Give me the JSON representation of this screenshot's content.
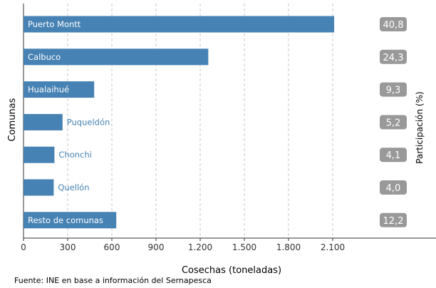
{
  "chart_data": {
    "type": "bar",
    "orientation": "horizontal",
    "categories": [
      "Puerto Montt",
      "Calbuco",
      "Hualaihué",
      "Puqueldón",
      "Chonchi",
      "Quellón",
      "Resto de comunas"
    ],
    "values": [
      2110,
      1255,
      480,
      265,
      210,
      205,
      630
    ],
    "shares": [
      "40,8",
      "24,3",
      "9,3",
      "5,2",
      "4,1",
      "4,0",
      "12,2"
    ],
    "xlabel": "Cosechas (toneladas)",
    "ylabel": "Comunas",
    "y2label": "Participación (%)",
    "xlim": [
      0,
      2700
    ],
    "xticks": [
      0,
      300,
      600,
      900,
      1200,
      1500,
      1800,
      2100
    ],
    "xtick_labels": [
      "0",
      "300",
      "600",
      "900",
      "1.200",
      "1.500",
      "1.800",
      "2.100"
    ],
    "grid": "vertical dashed",
    "colors": {
      "bar": "#4682b4",
      "badge": "#999999",
      "grid": "#c8c8c8",
      "label_outside": "#4682b4",
      "label_inside": "#ffffff"
    }
  },
  "source_note": "Fuente: INE en base a información del Sernapesca"
}
